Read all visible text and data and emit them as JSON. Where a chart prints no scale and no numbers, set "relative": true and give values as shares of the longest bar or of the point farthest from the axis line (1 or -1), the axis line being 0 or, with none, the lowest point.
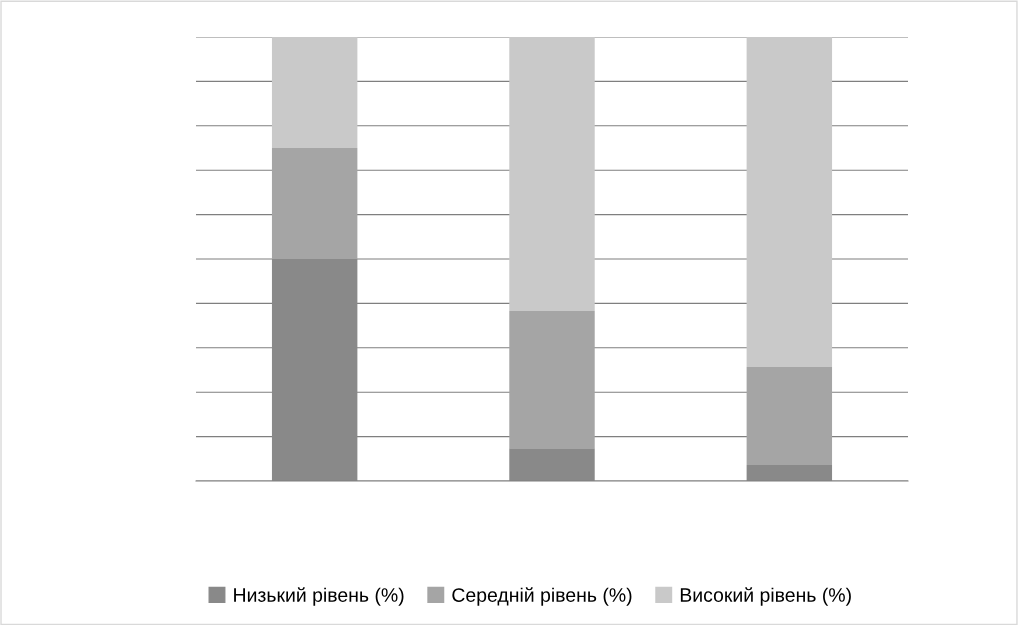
{
  "chart_data": {
    "type": "bar",
    "stacked": true,
    "relative": true,
    "categories": [
      null,
      null,
      null
    ],
    "series": [
      {
        "name": "Низький рівень (%)",
        "color": "#898989",
        "values": [
          0.5,
          0.074,
          0.036
        ]
      },
      {
        "name": "Середній рівень (%)",
        "color": "#a5a5a5",
        "values": [
          0.25,
          0.309,
          0.221
        ]
      },
      {
        "name": "Високий рівень (%)",
        "color": "#c9c9c9",
        "values": [
          0.25,
          0.617,
          0.743
        ]
      }
    ],
    "grid": "y",
    "legend": "bottom"
  }
}
